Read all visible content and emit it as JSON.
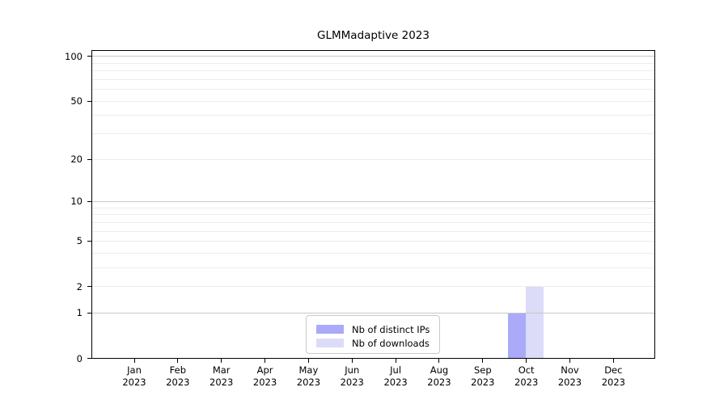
{
  "chart_data": {
    "type": "bar",
    "title": "GLMMadaptive 2023",
    "categories": [
      {
        "month": "Jan",
        "year": "2023"
      },
      {
        "month": "Feb",
        "year": "2023"
      },
      {
        "month": "Mar",
        "year": "2023"
      },
      {
        "month": "Apr",
        "year": "2023"
      },
      {
        "month": "May",
        "year": "2023"
      },
      {
        "month": "Jun",
        "year": "2023"
      },
      {
        "month": "Jul",
        "year": "2023"
      },
      {
        "month": "Aug",
        "year": "2023"
      },
      {
        "month": "Sep",
        "year": "2023"
      },
      {
        "month": "Oct",
        "year": "2023"
      },
      {
        "month": "Nov",
        "year": "2023"
      },
      {
        "month": "Dec",
        "year": "2023"
      }
    ],
    "series": [
      {
        "name": "Nb of distinct IPs",
        "color": "#aaaaf9",
        "values": [
          0,
          0,
          0,
          0,
          0,
          0,
          0,
          0,
          0,
          1,
          0,
          0
        ]
      },
      {
        "name": "Nb of downloads",
        "color": "#dcdcf8",
        "values": [
          0,
          0,
          0,
          0,
          0,
          0,
          0,
          0,
          0,
          2,
          0,
          0
        ]
      }
    ],
    "yscale": "log1p",
    "yticks": [
      0,
      1,
      2,
      5,
      10,
      20,
      50,
      100
    ],
    "ylim": [
      0,
      110
    ],
    "grid_major": [
      1,
      10,
      100
    ],
    "grid_minor": [
      2,
      3,
      4,
      5,
      6,
      7,
      8,
      9,
      20,
      30,
      40,
      50,
      60,
      70,
      80,
      90
    ],
    "legend_position": "bottom-center",
    "xlabel": "",
    "ylabel": ""
  },
  "colors": {
    "background": "#ffffff",
    "axis": "#000000",
    "grid_major": "#c8c8c8",
    "grid_minor": "#ececec",
    "legend_border": "#c9c9c9",
    "text": "#000000"
  }
}
